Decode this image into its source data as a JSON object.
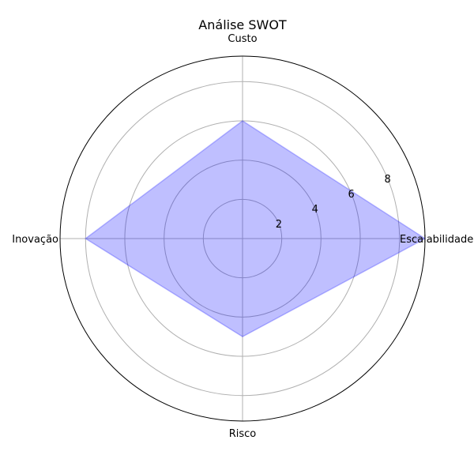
{
  "chart_data": {
    "type": "radar",
    "title": "Análise SWOT",
    "categories": [
      "Escalabilidade",
      "Custo",
      "Inovação",
      "Risco"
    ],
    "values": [
      9.3,
      6,
      8,
      5
    ],
    "rlim": [
      0,
      9.3
    ],
    "rticks": [
      2,
      4,
      6,
      8
    ],
    "rtick_labels": [
      "2",
      "4",
      "6",
      "8"
    ],
    "grid": true,
    "colors": {
      "fill": "#0000ff",
      "fill_opacity": 0.25,
      "grid": "#b0b0b0",
      "outer_ring": "#000000"
    }
  }
}
